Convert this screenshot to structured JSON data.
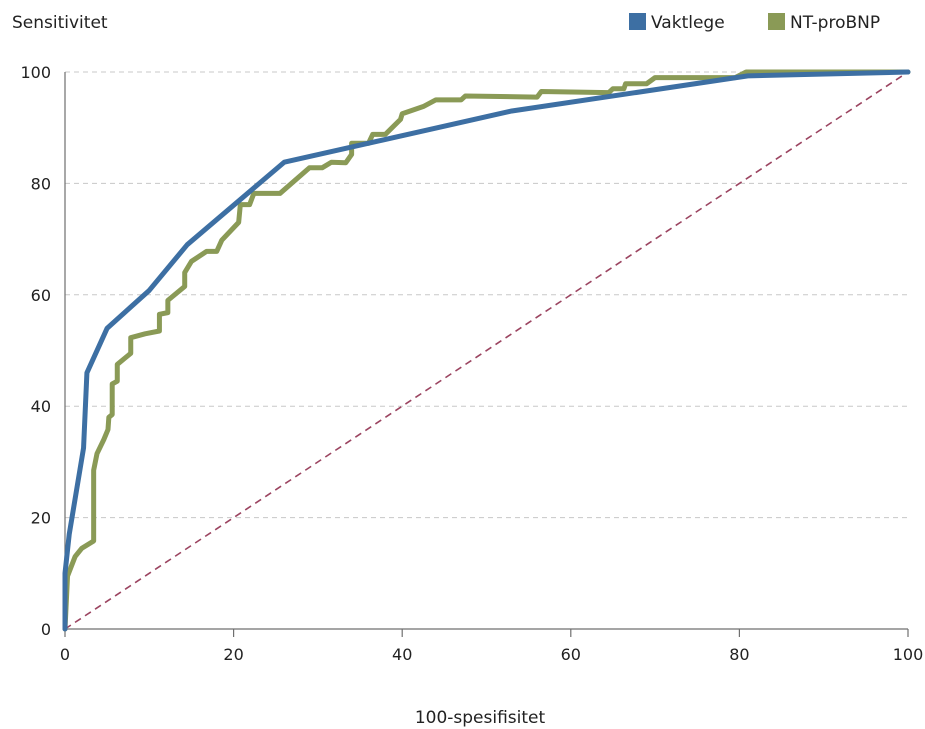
{
  "chart_data": {
    "type": "line",
    "title": "",
    "ylabel": "Sensitivitet",
    "xlabel": "100-spesifisitet",
    "xlim": [
      0,
      100
    ],
    "ylim": [
      0,
      100
    ],
    "xticks": [
      "0",
      "20",
      "40",
      "60",
      "80",
      "100"
    ],
    "yticks": [
      "0",
      "20",
      "40",
      "60",
      "80",
      "100"
    ],
    "grid": "horizontal dashed",
    "legend_position": "top-right",
    "series": [
      {
        "name": "Vaktlege",
        "color": "#3d6fa3",
        "points": [
          [
            0,
            0
          ],
          [
            0,
            10
          ],
          [
            0.5,
            17
          ],
          [
            2.2,
            32.5
          ],
          [
            2.6,
            46
          ],
          [
            5,
            54
          ],
          [
            10,
            60.8
          ],
          [
            14.5,
            69
          ],
          [
            26,
            83.8
          ],
          [
            53,
            93
          ],
          [
            81,
            99.3
          ],
          [
            100,
            100
          ]
        ]
      },
      {
        "name": "NT-proBNP",
        "color": "#8a9a56",
        "points": [
          [
            0,
            0
          ],
          [
            0.3,
            9.5
          ],
          [
            1.2,
            13
          ],
          [
            2,
            14.5
          ],
          [
            3.4,
            15.8
          ],
          [
            3.4,
            28.5
          ],
          [
            3.8,
            31.5
          ],
          [
            4.6,
            34
          ],
          [
            5.1,
            35.8
          ],
          [
            5.2,
            38
          ],
          [
            5.6,
            38.5
          ],
          [
            5.6,
            44
          ],
          [
            6.2,
            44.5
          ],
          [
            6.2,
            47.5
          ],
          [
            7.8,
            49.5
          ],
          [
            7.8,
            52.3
          ],
          [
            9.5,
            53
          ],
          [
            11.2,
            53.5
          ],
          [
            11.2,
            56.5
          ],
          [
            12.2,
            56.8
          ],
          [
            12.2,
            59
          ],
          [
            14.2,
            61.5
          ],
          [
            14.2,
            64
          ],
          [
            15,
            66
          ],
          [
            16.8,
            67.8
          ],
          [
            18,
            67.8
          ],
          [
            18.6,
            69.8
          ],
          [
            20.6,
            73
          ],
          [
            20.8,
            76.2
          ],
          [
            21.9,
            76.2
          ],
          [
            22.4,
            78.2
          ],
          [
            25.5,
            78.2
          ],
          [
            29,
            82.8
          ],
          [
            30.5,
            82.8
          ],
          [
            31.6,
            83.8
          ],
          [
            33.3,
            83.7
          ],
          [
            34,
            85.2
          ],
          [
            34,
            87.2
          ],
          [
            36,
            87.2
          ],
          [
            36.5,
            88.8
          ],
          [
            38,
            88.8
          ],
          [
            39.8,
            91.5
          ],
          [
            40,
            92.5
          ],
          [
            42.5,
            93.8
          ],
          [
            44,
            95
          ],
          [
            47,
            95
          ],
          [
            47.5,
            95.7
          ],
          [
            56,
            95.5
          ],
          [
            56.5,
            96.5
          ],
          [
            64.5,
            96.3
          ],
          [
            65,
            97
          ],
          [
            66.3,
            97
          ],
          [
            66.5,
            97.9
          ],
          [
            69,
            97.9
          ],
          [
            70,
            99
          ],
          [
            79.5,
            99
          ],
          [
            80.8,
            100
          ],
          [
            100,
            100
          ]
        ]
      }
    ],
    "reference_line": {
      "from": [
        0,
        0
      ],
      "to": [
        100,
        100
      ],
      "color": "#9b4460",
      "style": "dashed"
    }
  }
}
